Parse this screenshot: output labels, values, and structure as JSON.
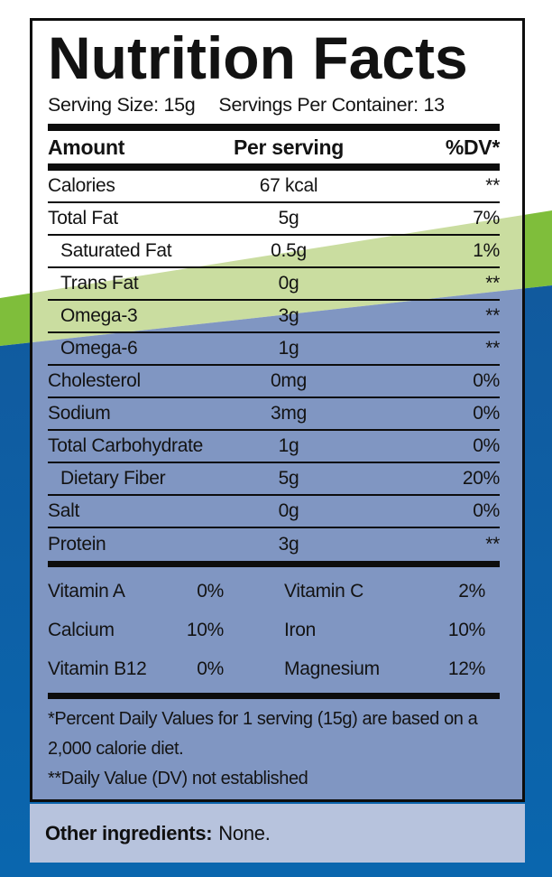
{
  "colors": {
    "outer_green": "#7fbe3b",
    "inner_green": "#cadda0",
    "outer_blue_top": "#115a9e",
    "outer_blue_bottom": "#0a66ae",
    "inner_blue": "#8096c2",
    "strip": "#b7c3dd",
    "bar_black": "#0d0d0d"
  },
  "header": {
    "title": "Nutrition Facts",
    "serving_size": "Serving Size: 15g",
    "servings_per_container": "Servings Per Container: 13"
  },
  "table": {
    "columns": [
      "Amount",
      "Per serving",
      "%DV*"
    ],
    "rows": [
      {
        "name": "Calories",
        "amount": "67 kcal",
        "dv": "**",
        "indent": false
      },
      {
        "name": "Total Fat",
        "amount": "5g",
        "dv": "7%",
        "indent": false
      },
      {
        "name": "Saturated Fat",
        "amount": "0.5g",
        "dv": "1%",
        "indent": true
      },
      {
        "name": "Trans Fat",
        "amount": "0g",
        "dv": "**",
        "indent": true
      },
      {
        "name": "Omega-3",
        "amount": "3g",
        "dv": "**",
        "indent": true
      },
      {
        "name": "Omega-6",
        "amount": "1g",
        "dv": "**",
        "indent": true
      },
      {
        "name": "Cholesterol",
        "amount": "0mg",
        "dv": "0%",
        "indent": false
      },
      {
        "name": "Sodium",
        "amount": "3mg",
        "dv": "0%",
        "indent": false
      },
      {
        "name": "Total Carbohydrate",
        "amount": "1g",
        "dv": "0%",
        "indent": false
      },
      {
        "name": "Dietary Fiber",
        "amount": "5g",
        "dv": "20%",
        "indent": true
      },
      {
        "name": "Salt",
        "amount": "0g",
        "dv": "0%",
        "indent": false
      },
      {
        "name": "Protein",
        "amount": "3g",
        "dv": "**",
        "indent": false
      }
    ]
  },
  "micronutrients": {
    "rows": [
      {
        "left_name": "Vitamin A",
        "left_value": "0%",
        "right_name": "Vitamin C",
        "right_value": "2%"
      },
      {
        "left_name": "Calcium",
        "left_value": "10%",
        "right_name": "Iron",
        "right_value": "10%"
      },
      {
        "left_name": "Vitamin B12",
        "left_value": "0%",
        "right_name": "Magnesium",
        "right_value": "12%"
      }
    ]
  },
  "footnotes": [
    "*Percent Daily Values for 1 serving (15g) are based on a 2,000 calorie diet.",
    "**Daily Value (DV) not established"
  ],
  "other_ingredients": {
    "label": "Other ingredients:",
    "value": "None."
  }
}
